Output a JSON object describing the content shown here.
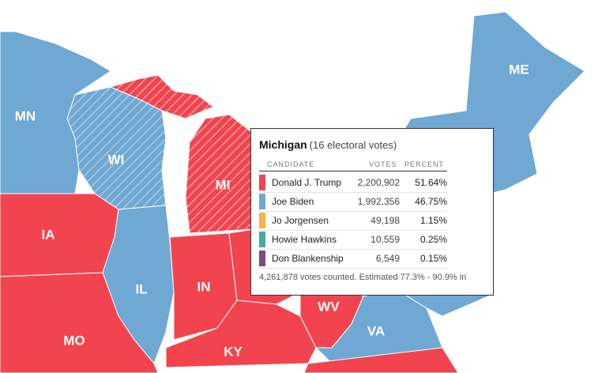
{
  "map": {
    "state_labels": [
      "MN",
      "WI",
      "MI",
      "IA",
      "IL",
      "IN",
      "MO",
      "KY",
      "WV",
      "VA",
      "ME"
    ]
  },
  "tooltip": {
    "title": "Michigan",
    "subtitle": "(16 electoral votes)",
    "columns": [
      "CANDIDATE",
      "VOTES",
      "PERCENT"
    ],
    "rows": [
      {
        "candidate": "Donald J. Trump",
        "votes": "2,200,902",
        "percent": "51.64%",
        "color": "#f2444f"
      },
      {
        "candidate": "Joe Biden",
        "votes": "1,992,356",
        "percent": "46.75%",
        "color": "#6fa8d2"
      },
      {
        "candidate": "Jo Jorgensen",
        "votes": "49,198",
        "percent": "1.15%",
        "color": "#f4b44a"
      },
      {
        "candidate": "Howie Hawkins",
        "votes": "10,559",
        "percent": "0.25%",
        "color": "#4aa89e"
      },
      {
        "candidate": "Don Blankenship",
        "votes": "6,549",
        "percent": "0.15%",
        "color": "#7b4a7e"
      }
    ],
    "footer": "4,261,878 votes counted. Estimated 77.3% - 90.9% in"
  }
}
